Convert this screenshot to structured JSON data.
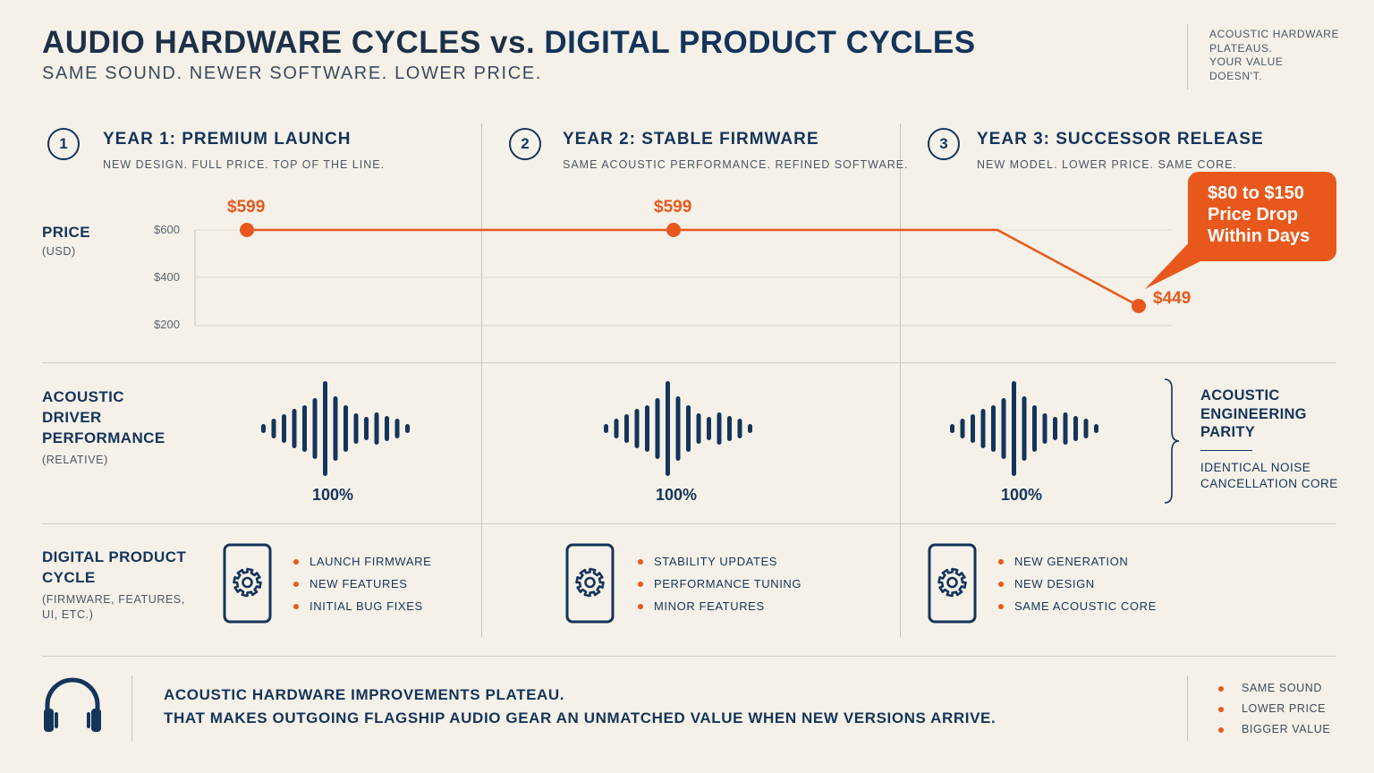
{
  "header": {
    "title_part1": "AUDIO HARDWARE CYCLES vs. ",
    "title_part2": "DIGITAL PRODUCT CYCLES",
    "subtitle": "SAME SOUND. NEWER SOFTWARE. LOWER PRICE.",
    "side_note": [
      "ACOUSTIC HARDWARE",
      "PLATEAUS.",
      "YOUR VALUE",
      "DOESN'T."
    ]
  },
  "steps": [
    {
      "number": "1",
      "title": "YEAR 1: PREMIUM LAUNCH",
      "subtitle": "NEW DESIGN. FULL PRICE. TOP OF THE LINE."
    },
    {
      "number": "2",
      "title": "YEAR 2: STABLE FIRMWARE",
      "subtitle": "SAME ACOUSTIC PERFORMANCE. REFINED SOFTWARE."
    },
    {
      "number": "3",
      "title": "YEAR 3: SUCCESSOR RELEASE",
      "subtitle": "NEW MODEL. LOWER PRICE. SAME CORE."
    }
  ],
  "price_row": {
    "label": "PRICE",
    "unit": "(USD)",
    "ticks": [
      "$600",
      "$400",
      "$200"
    ],
    "points": [
      {
        "label": "$599",
        "value": 599
      },
      {
        "label": "$599",
        "value": 599
      },
      {
        "label": "$449",
        "value": 449
      }
    ],
    "callout": [
      "$80 to $150",
      "Price Drop",
      "Within Days"
    ]
  },
  "acoustic_row": {
    "label": [
      "ACOUSTIC",
      "DRIVER",
      "PERFORMANCE"
    ],
    "unit": "(RELATIVE)",
    "values": [
      "100%",
      "100%",
      "100%"
    ],
    "parity_title": [
      "ACOUSTIC",
      "ENGINEERING",
      "PARITY"
    ],
    "parity_sub": [
      "IDENTICAL NOISE",
      "CANCELLATION CORE"
    ]
  },
  "digital_row": {
    "label": [
      "DIGITAL PRODUCT",
      "CYCLE"
    ],
    "unit": [
      "(FIRMWARE, FEATURES,",
      "UI, ETC.)"
    ],
    "columns": [
      [
        "LAUNCH FIRMWARE",
        "NEW FEATURES",
        "INITIAL BUG FIXES"
      ],
      [
        "STABILITY UPDATES",
        "PERFORMANCE TUNING",
        "MINOR FEATURES"
      ],
      [
        "NEW GENERATION",
        "NEW DESIGN",
        "SAME ACOUSTIC CORE"
      ]
    ]
  },
  "footer": {
    "line1": "ACOUSTIC HARDWARE IMPROVEMENTS PLATEAU.",
    "line2": "THAT MAKES OUTGOING FLAGSHIP AUDIO GEAR AN UNMATCHED VALUE WHEN NEW VERSIONS ARRIVE.",
    "list": [
      "SAME SOUND",
      "LOWER PRICE",
      "BIGGER VALUE"
    ]
  },
  "colors": {
    "navy": "#14345a",
    "accent": "#e8581c",
    "background": "#f5f1e8"
  },
  "icons": [
    "gear-icon",
    "phone-icon",
    "headphones-icon",
    "waveform-icon"
  ]
}
